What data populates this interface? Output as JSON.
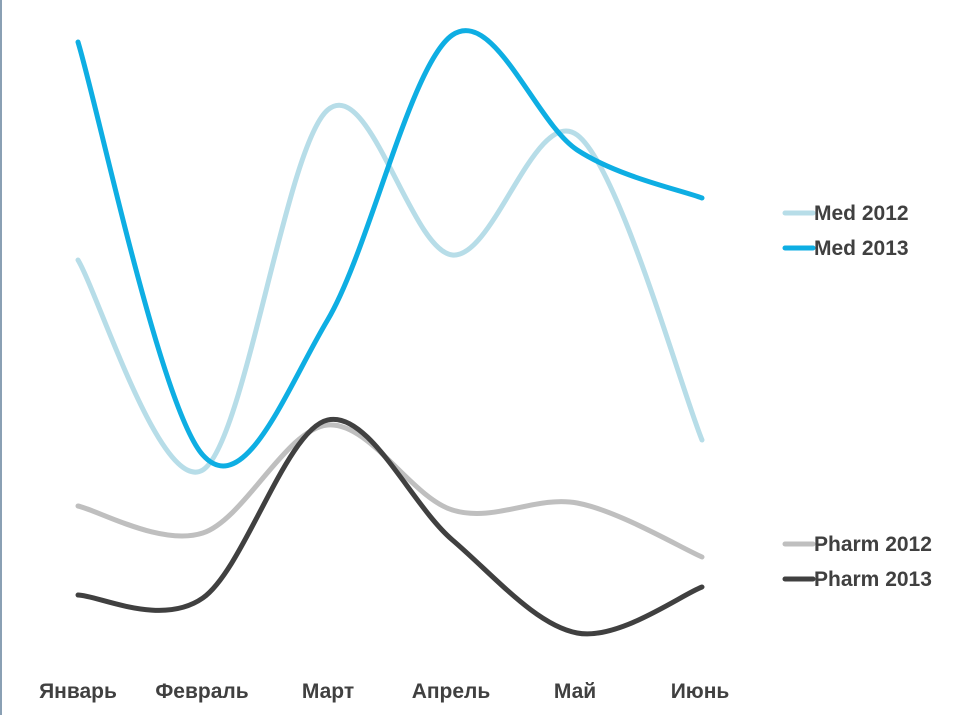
{
  "chart_data": {
    "type": "line",
    "title": "",
    "xlabel": "",
    "ylabel": "",
    "categories": [
      "Январь",
      "Февраль",
      "Март",
      "Апрель",
      "Май",
      "Июнь"
    ],
    "ylim": [
      0,
      640
    ],
    "grid": false,
    "legend_placement": "right",
    "series": [
      {
        "name": "Med 2012",
        "color": "#b7dde8",
        "values": [
          400,
          190,
          550,
          405,
          525,
          220
        ]
      },
      {
        "name": "Med 2013",
        "color": "#0eaee3",
        "values": [
          618,
          205,
          340,
          625,
          510,
          462
        ]
      },
      {
        "name": "Pharm 2012",
        "color": "#bfbfbf",
        "values": [
          154,
          127,
          235,
          150,
          157,
          103
        ]
      },
      {
        "name": "Pharm 2013",
        "color": "#404040",
        "values": [
          65,
          62,
          240,
          120,
          27,
          73
        ]
      }
    ]
  }
}
